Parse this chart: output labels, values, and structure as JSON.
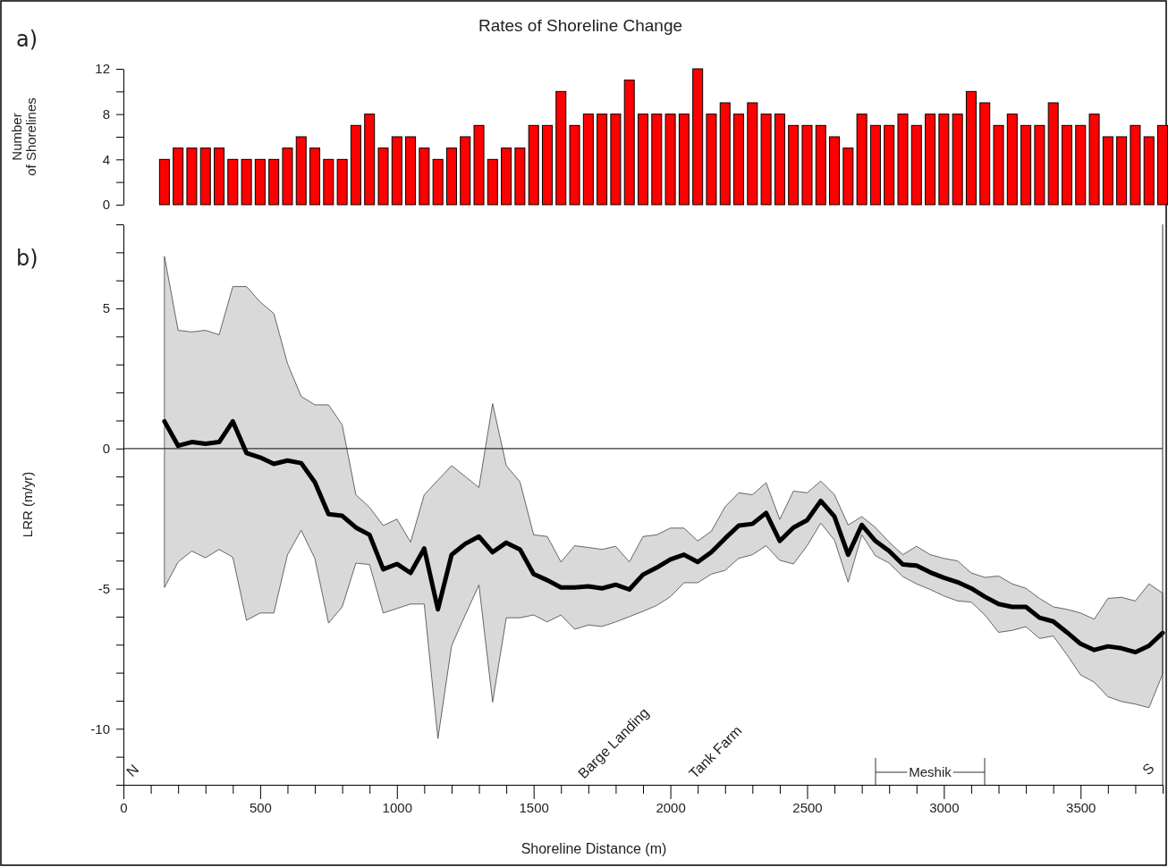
{
  "chart_data": [
    {
      "type": "bar",
      "title": "Rates of Shoreline Change",
      "ylabel": "Number of Shorelines",
      "annotations": [
        "a)"
      ],
      "color": "#ff0000",
      "tick_labels": "y",
      "x": [
        150,
        200,
        250,
        300,
        350,
        400,
        450,
        500,
        550,
        600,
        650,
        700,
        750,
        800,
        850,
        900,
        950,
        1000,
        1050,
        1100,
        1150,
        1200,
        1250,
        1300,
        1350,
        1400,
        1450,
        1500,
        1550,
        1600,
        1650,
        1700,
        1750,
        1800,
        1850,
        1900,
        1950,
        2000,
        2050,
        2100,
        2150,
        2200,
        2250,
        2300,
        2350,
        2400,
        2450,
        2500,
        2550,
        2600,
        2650,
        2700,
        2750,
        2800,
        2850,
        2900,
        2950,
        3000,
        3050,
        3100,
        3150,
        3200,
        3250,
        3300,
        3350,
        3400,
        3450,
        3500,
        3550,
        3600,
        3650,
        3700,
        3750,
        3800
      ],
      "values": [
        4,
        5,
        5,
        5,
        5,
        4,
        4,
        4,
        4,
        5,
        6,
        5,
        4,
        4,
        7,
        8,
        5,
        6,
        6,
        5,
        4,
        5,
        6,
        7,
        4,
        5,
        5,
        7,
        7,
        10,
        7,
        8,
        8,
        8,
        11,
        8,
        8,
        8,
        8,
        12,
        8,
        9,
        8,
        9,
        8,
        8,
        7,
        7,
        7,
        6,
        5,
        8,
        7,
        7,
        8,
        7,
        8,
        8,
        8,
        10,
        9,
        7,
        8,
        7,
        7,
        9,
        7,
        7,
        8,
        6,
        6,
        7,
        6,
        7
      ],
      "xlim": [
        0,
        3800
      ],
      "ylim": [
        0,
        12
      ],
      "yticks": [
        0,
        {
          "value": 2,
          "label": null
        },
        4,
        {
          "value": 6,
          "label": null
        },
        8,
        {
          "value": 10,
          "label": null
        },
        12
      ]
    },
    {
      "type": "line",
      "ylabel": "LRR (m/yr)",
      "xlabel": "Shoreline Distance (m)",
      "marker": "none",
      "line_style": "solid",
      "annotations": [
        "b)",
        "N",
        "Barge Landing",
        "Tank Farm",
        "Meshik",
        "S"
      ],
      "ref_lines": [
        {
          "axis": "y",
          "value": 0
        }
      ],
      "x": [
        150,
        200,
        250,
        300,
        350,
        400,
        450,
        500,
        550,
        600,
        650,
        700,
        750,
        800,
        850,
        900,
        950,
        1000,
        1050,
        1100,
        1150,
        1200,
        1250,
        1300,
        1350,
        1400,
        1450,
        1500,
        1550,
        1600,
        1650,
        1700,
        1750,
        1800,
        1850,
        1900,
        1950,
        2000,
        2050,
        2100,
        2150,
        2200,
        2250,
        2300,
        2350,
        2400,
        2450,
        2500,
        2550,
        2600,
        2650,
        2700,
        2750,
        2800,
        2850,
        2900,
        2950,
        3000,
        3050,
        3100,
        3150,
        3200,
        3250,
        3300,
        3350,
        3400,
        3450,
        3500,
        3550,
        3600,
        3650,
        3700,
        3750,
        3800
      ],
      "series": [
        {
          "color": "#000000",
          "values": [
            0.97,
            0.1,
            0.23,
            0.17,
            0.23,
            0.97,
            -0.16,
            -0.32,
            -0.55,
            -0.43,
            -0.52,
            -1.2,
            -2.34,
            -2.4,
            -2.82,
            -3.08,
            -4.31,
            -4.12,
            -4.44,
            -3.57,
            -5.74,
            -3.79,
            -3.4,
            -3.14,
            -3.7,
            -3.36,
            -3.6,
            -4.48,
            -4.7,
            -4.96,
            -4.96,
            -4.92,
            -4.99,
            -4.86,
            -5.03,
            -4.5,
            -4.25,
            -3.96,
            -3.79,
            -4.05,
            -3.7,
            -3.21,
            -2.75,
            -2.69,
            -2.3,
            -3.3,
            -2.82,
            -2.56,
            -1.87,
            -2.43,
            -3.79,
            -2.73,
            -3.3,
            -3.66,
            -4.14,
            -4.18,
            -4.42,
            -4.61,
            -4.77,
            -4.99,
            -5.29,
            -5.55,
            -5.65,
            -5.65,
            -6.04,
            -6.17,
            -6.56,
            -6.97,
            -7.19,
            -7.06,
            -7.13,
            -7.27,
            -7.04,
            -6.58
          ],
          "upper": [
            6.86,
            4.22,
            4.16,
            4.22,
            4.06,
            5.78,
            5.78,
            5.23,
            4.82,
            3.03,
            1.86,
            1.56,
            1.56,
            0.84,
            -1.65,
            -2.1,
            -2.75,
            -2.52,
            -3.34,
            -1.65,
            -1.13,
            -0.61,
            -1.0,
            -1.39,
            1.6,
            -0.61,
            -1.19,
            -3.08,
            -3.14,
            -4.05,
            -3.47,
            -3.53,
            -3.6,
            -3.49,
            -4.05,
            -3.14,
            -3.08,
            -2.84,
            -2.84,
            -3.3,
            -2.95,
            -2.08,
            -1.58,
            -1.65,
            -1.22,
            -2.53,
            -1.52,
            -1.58,
            -1.16,
            -1.65,
            -2.73,
            -2.43,
            -2.82,
            -3.34,
            -3.79,
            -3.49,
            -3.79,
            -3.92,
            -4.01,
            -4.44,
            -4.6,
            -4.55,
            -4.83,
            -4.99,
            -5.35,
            -5.65,
            -5.74,
            -5.87,
            -6.09,
            -5.35,
            -5.31,
            -5.44,
            -4.83,
            -5.16
          ],
          "lower": [
            -4.96,
            -4.05,
            -3.66,
            -3.9,
            -3.6,
            -3.88,
            -6.13,
            -5.87,
            -5.87,
            -3.79,
            -2.92,
            -3.92,
            -6.23,
            -5.65,
            -4.09,
            -4.14,
            -5.87,
            -5.71,
            -5.55,
            -5.55,
            -10.35,
            -7.04,
            -5.94,
            -4.87,
            -9.05,
            -6.04,
            -6.04,
            -5.94,
            -6.19,
            -5.94,
            -6.45,
            -6.3,
            -6.35,
            -6.19,
            -6.0,
            -5.81,
            -5.6,
            -5.29,
            -4.79,
            -4.79,
            -4.48,
            -4.35,
            -3.92,
            -3.79,
            -3.47,
            -3.99,
            -4.12,
            -3.47,
            -2.66,
            -3.27,
            -4.77,
            -3.08,
            -3.83,
            -4.09,
            -4.57,
            -4.83,
            -5.03,
            -5.26,
            -5.44,
            -5.48,
            -5.94,
            -6.56,
            -6.49,
            -6.36,
            -6.78,
            -6.69,
            -7.36,
            -8.08,
            -8.34,
            -8.86,
            -9.03,
            -9.12,
            -9.25,
            -8.05
          ]
        }
      ],
      "xlim": [
        0,
        3800
      ],
      "xticks": [
        0,
        {
          "value": 100,
          "label": null
        },
        {
          "value": 200,
          "label": null
        },
        {
          "value": 300,
          "label": null
        },
        {
          "value": 400,
          "label": null
        },
        500,
        {
          "value": 600,
          "label": null
        },
        {
          "value": 700,
          "label": null
        },
        {
          "value": 800,
          "label": null
        },
        {
          "value": 900,
          "label": null
        },
        1000,
        {
          "value": 1100,
          "label": null
        },
        {
          "value": 1200,
          "label": null
        },
        {
          "value": 1300,
          "label": null
        },
        {
          "value": 1400,
          "label": null
        },
        1500,
        {
          "value": 1600,
          "label": null
        },
        {
          "value": 1700,
          "label": null
        },
        {
          "value": 1800,
          "label": null
        },
        {
          "value": 1900,
          "label": null
        },
        2000,
        {
          "value": 2100,
          "label": null
        },
        {
          "value": 2200,
          "label": null
        },
        {
          "value": 2300,
          "label": null
        },
        {
          "value": 2400,
          "label": null
        },
        2500,
        {
          "value": 2600,
          "label": null
        },
        {
          "value": 2700,
          "label": null
        },
        {
          "value": 2800,
          "label": null
        },
        {
          "value": 2900,
          "label": null
        },
        3000,
        {
          "value": 3100,
          "label": null
        },
        {
          "value": 3200,
          "label": null
        },
        {
          "value": 3300,
          "label": null
        },
        {
          "value": 3400,
          "label": null
        },
        3500,
        {
          "value": 3600,
          "label": null
        },
        {
          "value": 3700,
          "label": null
        },
        {
          "value": 3800,
          "label": null
        }
      ],
      "ylim": [
        -12,
        8
      ],
      "yticks": [
        {
          "value": -12,
          "label": null
        },
        {
          "value": -11,
          "label": null
        },
        -10,
        {
          "value": -9,
          "label": null
        },
        {
          "value": -8,
          "label": null
        },
        {
          "value": -7,
          "label": null
        },
        {
          "value": -6,
          "label": null
        },
        -5,
        {
          "value": -4,
          "label": null
        },
        {
          "value": -3,
          "label": null
        },
        {
          "value": -2,
          "label": null
        },
        {
          "value": -1,
          "label": null
        },
        0,
        {
          "value": 1,
          "label": null
        },
        {
          "value": 2,
          "label": null
        },
        {
          "value": 3,
          "label": null
        },
        {
          "value": 4,
          "label": null
        },
        5,
        {
          "value": 6,
          "label": null
        },
        {
          "value": 7,
          "label": null
        },
        {
          "value": 8,
          "label": null
        }
      ]
    }
  ]
}
